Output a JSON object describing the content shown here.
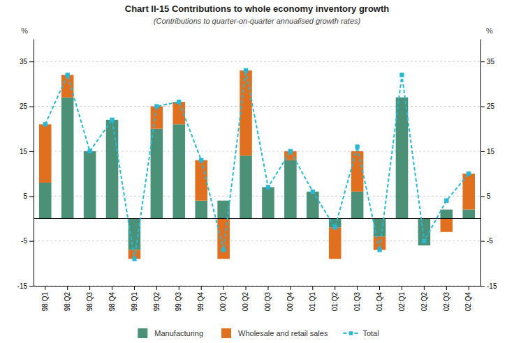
{
  "chart_data": {
    "type": "bar",
    "title": "Chart II-15   Contributions to whole economy inventory growth",
    "subtitle": "(Contributions to quarter-on-quarter annualised growth rates)",
    "ylabel": "%",
    "y2label": "%",
    "categories": [
      "98:Q1",
      "98:Q2",
      "98:Q3",
      "98:Q4",
      "99:Q1",
      "99:Q2",
      "99:Q3",
      "99:Q4",
      "00:Q1",
      "00:Q2",
      "00:Q3",
      "00:Q4",
      "01:Q1",
      "01:Q2",
      "01:Q3",
      "01:Q4",
      "02:Q1",
      "02:Q2",
      "02:Q3",
      "02:Q4"
    ],
    "series": [
      {
        "name": "Manufacturing",
        "type": "bar",
        "color": "#4a9177",
        "values": [
          8,
          27,
          15,
          22,
          -7,
          20,
          21,
          4,
          4,
          14,
          7,
          13,
          6,
          -2,
          6,
          -4,
          27,
          -6,
          2,
          2
        ]
      },
      {
        "name": "Wholesale and retail sales",
        "type": "bar",
        "color": "#e07020",
        "values": [
          13,
          5,
          0,
          0,
          -2,
          5,
          5,
          9,
          -9,
          19,
          0,
          2,
          0,
          -7,
          9,
          -3,
          0,
          0,
          -3,
          8
        ]
      },
      {
        "name": "Total",
        "type": "line",
        "color": "#29b8d4",
        "line_style": "dashed",
        "marker": "square",
        "values": [
          21,
          32,
          15,
          22,
          -9,
          25,
          26,
          13,
          -7,
          33,
          7,
          15,
          6,
          -2,
          16,
          -7,
          32,
          -5,
          4,
          10
        ]
      }
    ],
    "stacked": true,
    "ylim": [
      -15,
      40
    ],
    "yticks": [
      -15,
      -5,
      5,
      15,
      25,
      35
    ],
    "y2lim": [
      -15,
      40
    ],
    "y2ticks": [
      -15,
      -5,
      5,
      15,
      25,
      35
    ],
    "grid": true,
    "legend": "bottom"
  }
}
